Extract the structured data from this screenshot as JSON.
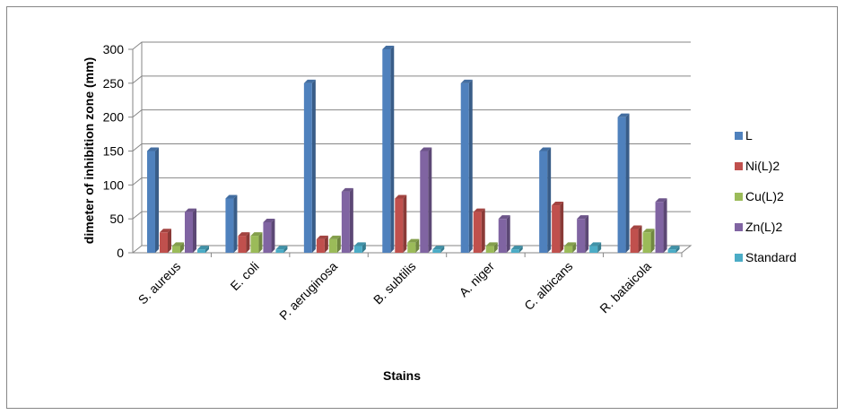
{
  "chart_data": {
    "type": "bar",
    "title": "",
    "xlabel": "Stains",
    "ylabel": "dimeter of inhibition zone (mm)",
    "ylim": [
      0,
      300
    ],
    "yticks": [
      0,
      50,
      100,
      150,
      200,
      250,
      300
    ],
    "grid": true,
    "legend_position": "right",
    "categories": [
      "S. aureus",
      "E. coli",
      "P. aeruginosa",
      "B. subtilis",
      "A. niger",
      "C. albicans",
      "R. bataicola"
    ],
    "series": [
      {
        "name": "L",
        "color": "#4F81BD",
        "values": [
          150,
          80,
          250,
          300,
          250,
          150,
          200
        ]
      },
      {
        "name": "Ni(L)2",
        "color": "#C0504D",
        "values": [
          30,
          25,
          20,
          80,
          60,
          70,
          35
        ]
      },
      {
        "name": "Cu(L)2",
        "color": "#9BBB59",
        "values": [
          10,
          25,
          20,
          15,
          10,
          10,
          30
        ]
      },
      {
        "name": "Zn(L)2",
        "color": "#8064A2",
        "values": [
          60,
          45,
          90,
          150,
          50,
          50,
          75
        ]
      },
      {
        "name": "Standard",
        "color": "#4BACC6",
        "values": [
          5,
          5,
          10,
          5,
          5,
          10,
          5
        ]
      }
    ]
  }
}
